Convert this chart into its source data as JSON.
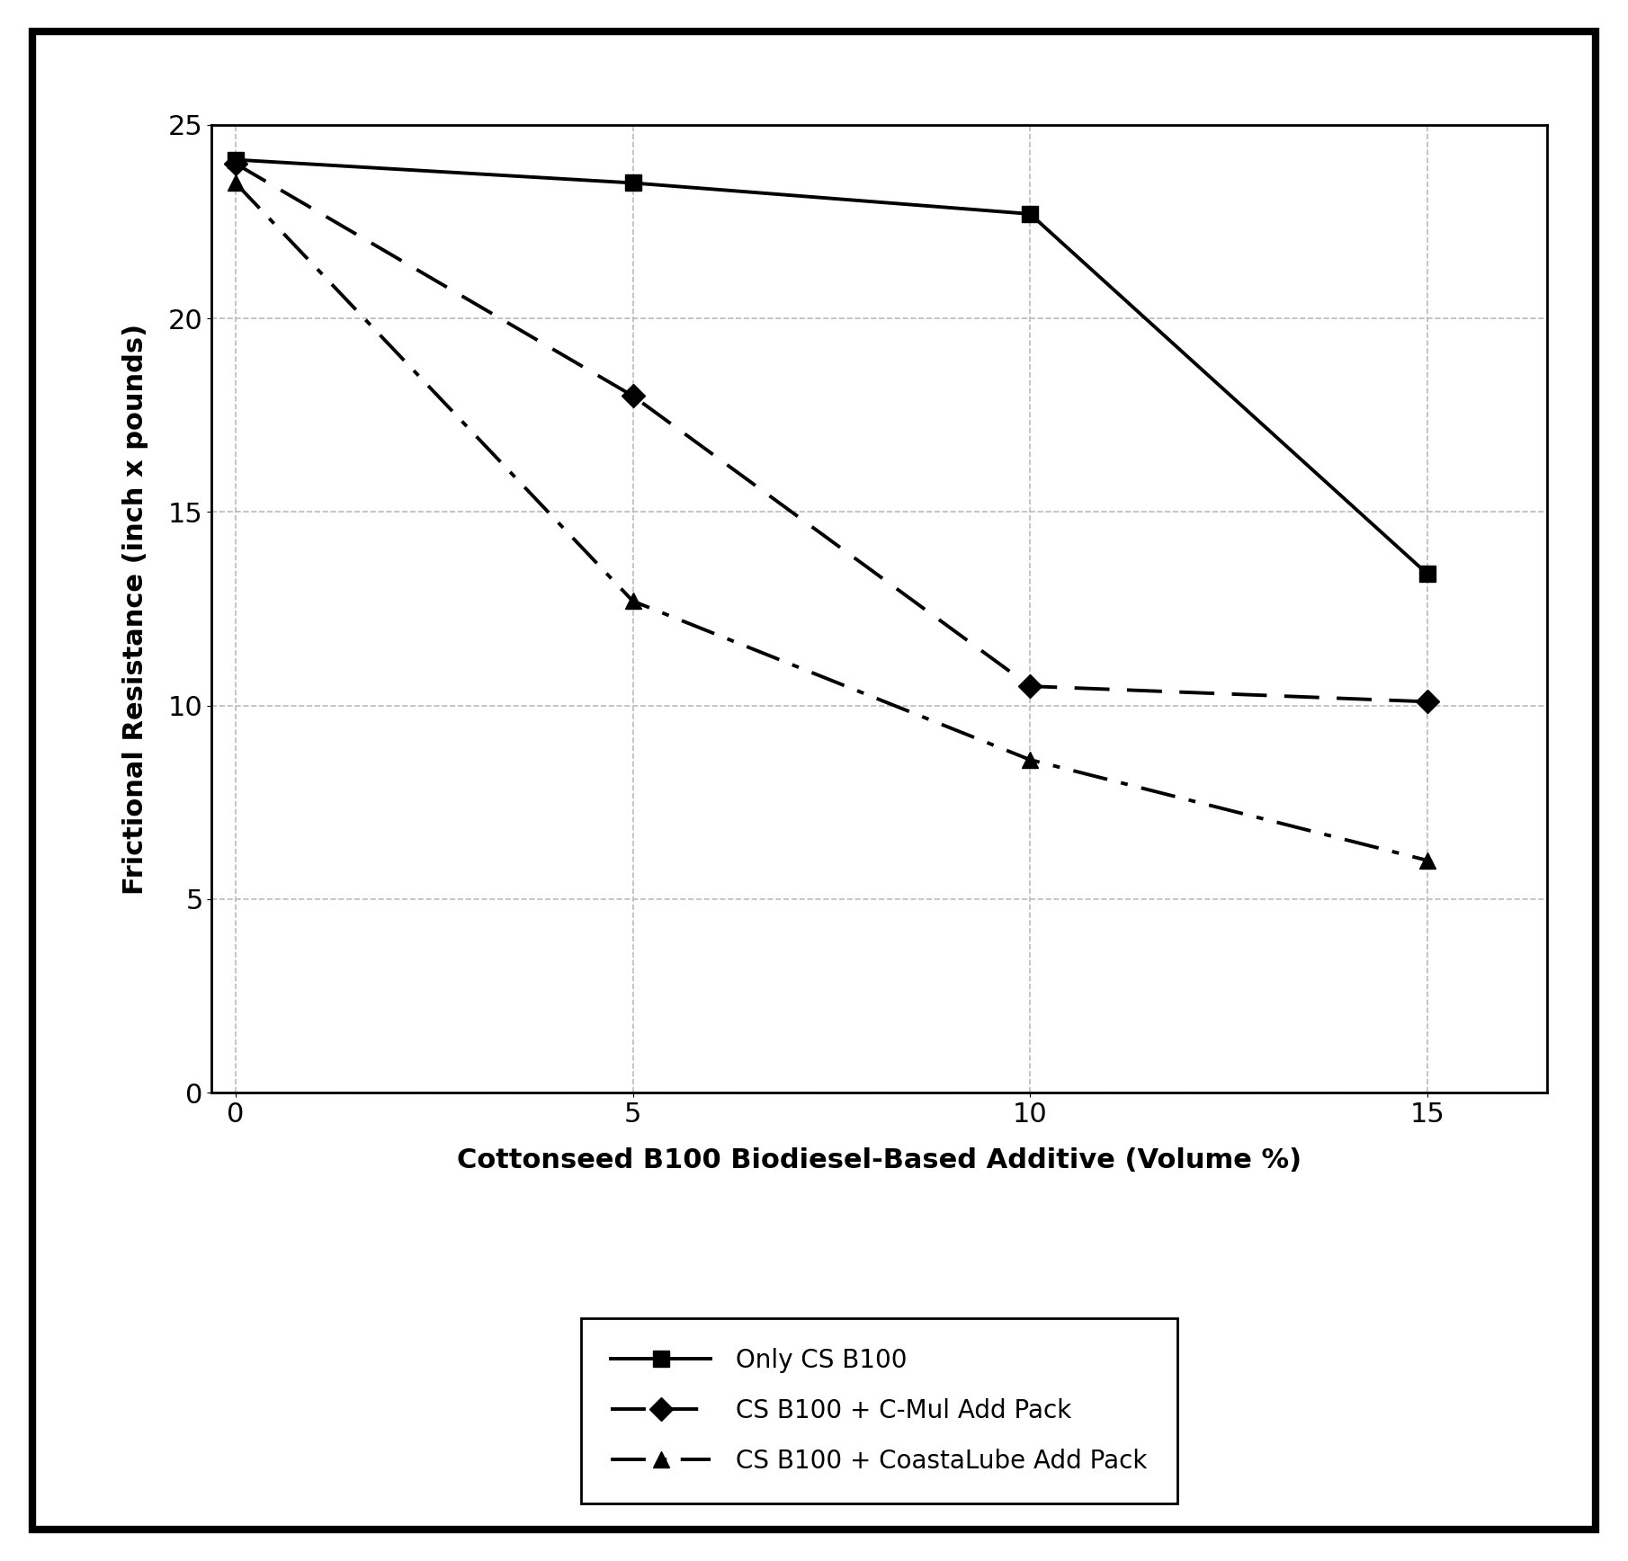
{
  "x": [
    0,
    5,
    10,
    15
  ],
  "series": [
    {
      "label": "Only CS B100",
      "y": [
        24.1,
        23.5,
        22.7,
        13.4
      ],
      "linestyle": "-",
      "marker": "s",
      "color": "#000000",
      "linewidth": 2.8,
      "markersize": 13,
      "dashes": null
    },
    {
      "label": "CS B100 + C-Mul Add Pack",
      "y": [
        24.0,
        18.0,
        10.5,
        10.1
      ],
      "linestyle": "--",
      "marker": "D",
      "color": "#000000",
      "linewidth": 2.8,
      "markersize": 13,
      "dashes": [
        10,
        5
      ]
    },
    {
      "label": "CS B100 + CoastaLube Add Pack",
      "y": [
        23.5,
        12.7,
        8.6,
        6.0
      ],
      "linestyle": "-.",
      "marker": "^",
      "color": "#000000",
      "linewidth": 2.8,
      "markersize": 13,
      "dashes": [
        10,
        4,
        2,
        4
      ]
    }
  ],
  "xlabel": "Cottonseed B100 Biodiesel-Based Additive (Volume %)",
  "ylabel": "Frictional Resistance (inch x pounds)",
  "xlim": [
    -0.3,
    16.5
  ],
  "ylim": [
    0,
    25
  ],
  "yticks": [
    0,
    5,
    10,
    15,
    20,
    25
  ],
  "xticks": [
    0,
    5,
    10,
    15
  ],
  "grid_color": "#bbbbbb",
  "background_color": "#ffffff",
  "axis_label_fontsize": 22,
  "tick_fontsize": 22,
  "legend_fontsize": 20,
  "outer_border_linewidth": 6,
  "inner_border_linewidth": 2
}
